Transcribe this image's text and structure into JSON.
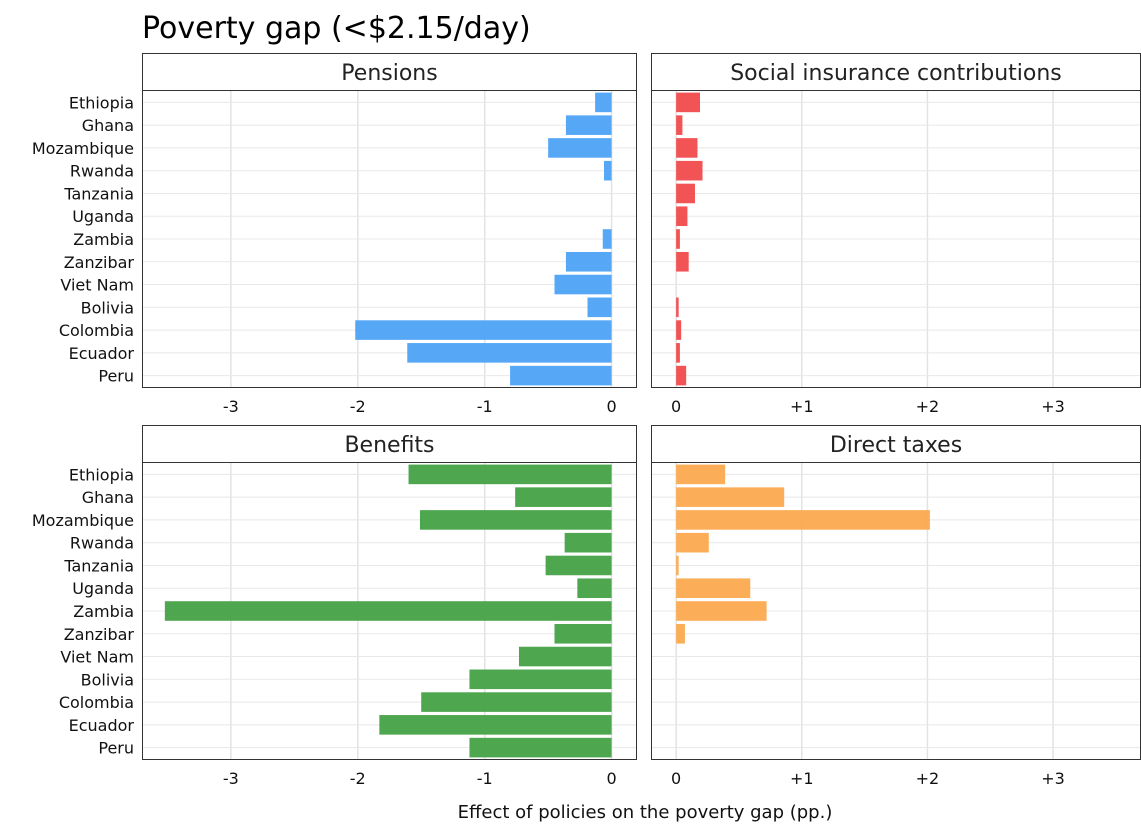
{
  "title": "Poverty gap (<$2.15/day)",
  "xlabel": "Effect of policies on the poverty gap (pp.)",
  "colors": {
    "pensions": "#4da3f7",
    "social_insurance": "#f14a4c",
    "benefits": "#45a146",
    "direct_taxes": "#fba94e"
  },
  "chart_data": [
    {
      "type": "bar",
      "orientation": "horizontal",
      "title": "Pensions",
      "categories": [
        "Ethiopia",
        "Ghana",
        "Mozambique",
        "Rwanda",
        "Tanzania",
        "Uganda",
        "Zambia",
        "Zanzibar",
        "Viet Nam",
        "Bolivia",
        "Colombia",
        "Ecuador",
        "Peru"
      ],
      "values": [
        -0.13,
        -0.36,
        -0.5,
        -0.06,
        0,
        0,
        -0.07,
        -0.36,
        -0.45,
        -0.19,
        -2.02,
        -1.61,
        -0.8
      ],
      "xlim": [
        -3.7,
        0.2
      ],
      "xticks": [
        "-3",
        "-2",
        "-1",
        "0"
      ],
      "xtick_values": [
        -3,
        -2,
        -1,
        0
      ],
      "color": "#4da3f7"
    },
    {
      "type": "bar",
      "orientation": "horizontal",
      "title": "Social insurance contributions",
      "categories": [
        "Ethiopia",
        "Ghana",
        "Mozambique",
        "Rwanda",
        "Tanzania",
        "Uganda",
        "Zambia",
        "Zanzibar",
        "Viet Nam",
        "Bolivia",
        "Colombia",
        "Ecuador",
        "Peru"
      ],
      "values": [
        0.19,
        0.05,
        0.17,
        0.21,
        0.15,
        0.09,
        0.03,
        0.1,
        0,
        0.02,
        0.04,
        0.03,
        0.08
      ],
      "xlim": [
        -0.2,
        3.7
      ],
      "xticks": [
        "0",
        "+1",
        "+2",
        "+3"
      ],
      "xtick_values": [
        0,
        1,
        2,
        3
      ],
      "color": "#f14a4c"
    },
    {
      "type": "bar",
      "orientation": "horizontal",
      "title": "Benefits",
      "categories": [
        "Ethiopia",
        "Ghana",
        "Mozambique",
        "Rwanda",
        "Tanzania",
        "Uganda",
        "Zambia",
        "Zanzibar",
        "Viet Nam",
        "Bolivia",
        "Colombia",
        "Ecuador",
        "Peru"
      ],
      "values": [
        -1.6,
        -0.76,
        -1.51,
        -0.37,
        -0.52,
        -0.27,
        -3.52,
        -0.45,
        -0.73,
        -1.12,
        -1.5,
        -1.83,
        -1.12
      ],
      "xlim": [
        -3.7,
        0.2
      ],
      "xticks": [
        "-3",
        "-2",
        "-1",
        "0"
      ],
      "xtick_values": [
        -3,
        -2,
        -1,
        0
      ],
      "color": "#45a146"
    },
    {
      "type": "bar",
      "orientation": "horizontal",
      "title": "Direct taxes",
      "categories": [
        "Ethiopia",
        "Ghana",
        "Mozambique",
        "Rwanda",
        "Tanzania",
        "Uganda",
        "Zambia",
        "Zanzibar",
        "Viet Nam",
        "Bolivia",
        "Colombia",
        "Ecuador",
        "Peru"
      ],
      "values": [
        0.39,
        0.86,
        2.02,
        0.26,
        0.02,
        0.59,
        0.72,
        0.07,
        0,
        0,
        0,
        0,
        0
      ],
      "xlim": [
        -0.2,
        3.7
      ],
      "xticks": [
        "0",
        "+1",
        "+2",
        "+3"
      ],
      "xtick_values": [
        0,
        1,
        2,
        3
      ],
      "color": "#fba94e"
    }
  ]
}
